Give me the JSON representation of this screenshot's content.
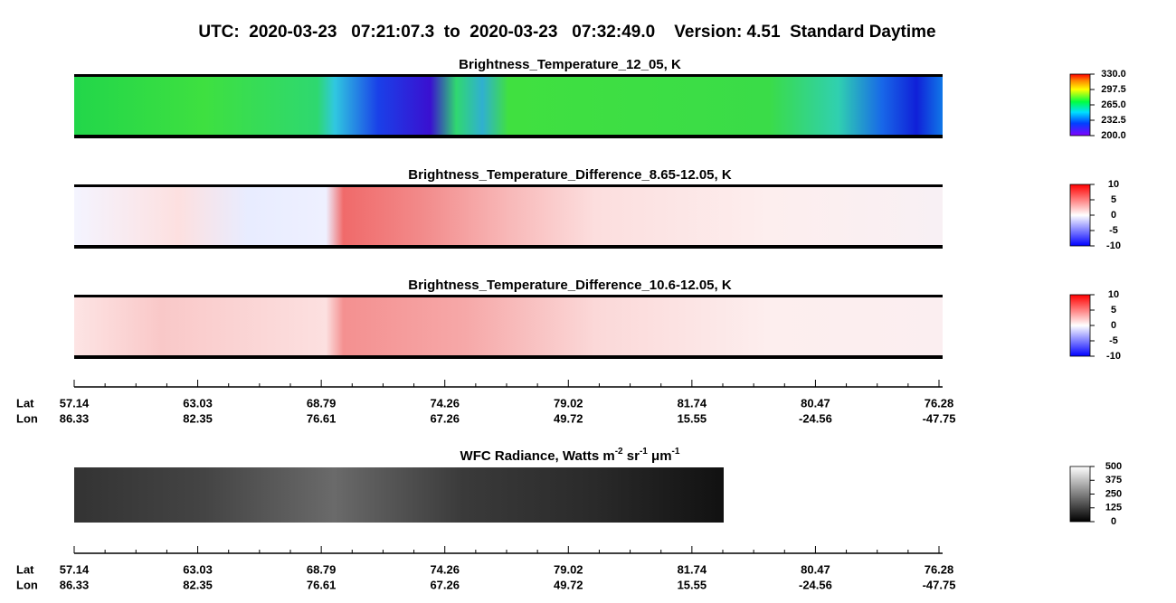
{
  "title": "UTC:  2020-03-23   07:21:07.3  to  2020-03-23   07:32:49.0    Version: 4.51  Standard Daytime",
  "panels": [
    {
      "title": "Brightness_Temperature_12_05, K",
      "colorbar_ticks": [
        "330.0",
        "297.5",
        "265.0",
        "232.5",
        "200.0"
      ]
    },
    {
      "title": "Brightness_Temperature_Difference_8.65-12.05, K",
      "colorbar_ticks": [
        "10",
        "5",
        "0",
        "-5",
        "-10"
      ]
    },
    {
      "title": "Brightness_Temperature_Difference_10.6-12.05, K",
      "colorbar_ticks": [
        "10",
        "5",
        "0",
        "-5",
        "-10"
      ]
    }
  ],
  "wfc_panel": {
    "title": [
      "WFC Radiance, Watts m",
      "-2",
      " sr",
      "-1",
      " μm",
      "-1"
    ],
    "colorbar_ticks": [
      "500",
      "375",
      "250",
      "125",
      "0"
    ]
  },
  "axes": [
    {
      "lat_label": "Lat",
      "lon_label": "Lon",
      "lat": [
        "57.14",
        "63.03",
        "68.79",
        "74.26",
        "79.02",
        "81.74",
        "80.47",
        "76.28"
      ],
      "lon": [
        "86.33",
        "82.35",
        "76.61",
        "67.26",
        "49.72",
        "15.55",
        "-24.56",
        "-47.75"
      ]
    },
    {
      "lat_label": "Lat",
      "lon_label": "Lon",
      "lat": [
        "57.14",
        "63.03",
        "68.79",
        "74.26",
        "79.02",
        "81.74",
        "80.47",
        "76.28"
      ],
      "lon": [
        "86.33",
        "82.35",
        "76.61",
        "67.26",
        "49.72",
        "15.55",
        "-24.56",
        "-47.75"
      ]
    }
  ]
}
